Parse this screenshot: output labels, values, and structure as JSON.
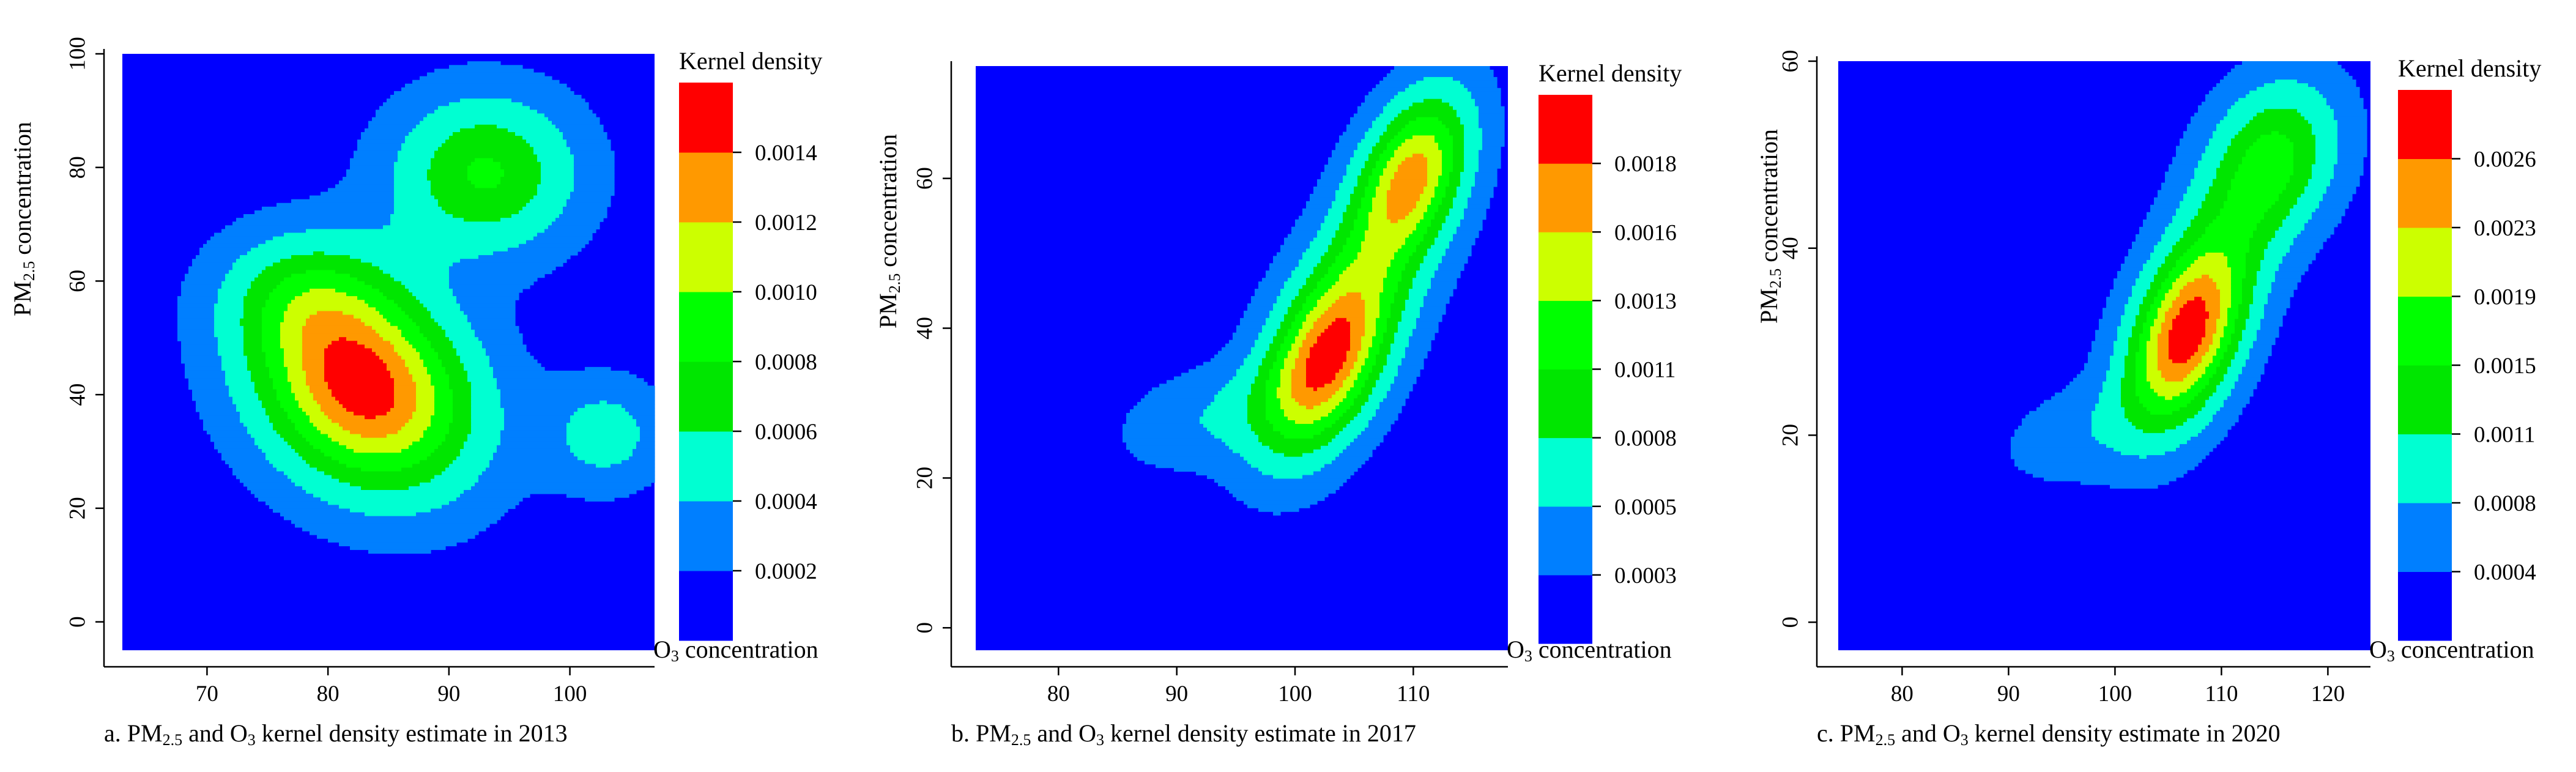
{
  "colors": {
    "levels": [
      "#0000ff",
      "#007fff",
      "#00ffd2",
      "#00e600",
      "#00ff00",
      "#ccff00",
      "#ff9900",
      "#ff0000"
    ]
  },
  "chart_data": [
    {
      "type": "heatmap",
      "title": "",
      "caption": "a. PM2.5 and O3 kernel density estimate in 2013",
      "caption_parts": {
        "pre": "a. PM",
        "sub1": "2.5",
        "mid": " and O",
        "sub2": "3",
        "post": " kernel density estimate in 2013"
      },
      "xlabel": {
        "pre": "O",
        "sub": "3",
        "post": " concentration"
      },
      "ylabel": {
        "pre": "PM",
        "sub": "2.5",
        "post": " concentration"
      },
      "xlim": [
        63,
        107
      ],
      "ylim": [
        -5,
        100
      ],
      "xticks": [
        70,
        80,
        90,
        100
      ],
      "yticks": [
        0,
        20,
        40,
        60,
        80,
        100
      ],
      "legend_title": "Kernel density",
      "legend_labels": [
        "0.0002",
        "0.0004",
        "0.0006",
        "0.0008",
        "0.0010",
        "0.0012",
        "0.0014"
      ],
      "peaks": [
        {
          "x": 83,
          "y": 41,
          "sx": 6.5,
          "sy": 13,
          "rho": -0.2,
          "amp": 1.0
        },
        {
          "x": 93,
          "y": 79,
          "sx": 5.5,
          "sy": 10,
          "rho": 0.0,
          "amp": 0.55
        },
        {
          "x": 103,
          "y": 33,
          "sx": 3.5,
          "sy": 7,
          "rho": 0.0,
          "amp": 0.3
        },
        {
          "x": 78,
          "y": 58,
          "sx": 5,
          "sy": 8,
          "rho": 0.0,
          "amp": 0.3
        }
      ]
    },
    {
      "type": "heatmap",
      "title": "",
      "caption": "b. PM2.5 and O3 kernel density estimate in 2017",
      "caption_parts": {
        "pre": "b. PM",
        "sub1": "2.5",
        "mid": " and O",
        "sub2": "3",
        "post": " kernel density estimate in 2017"
      },
      "xlabel": {
        "pre": "O",
        "sub": "3",
        "post": " concentration"
      },
      "ylabel": {
        "pre": "PM",
        "sub": "2.5",
        "post": " concentration"
      },
      "xlim": [
        73,
        118
      ],
      "ylim": [
        -3,
        75
      ],
      "xticks": [
        80,
        90,
        100,
        110
      ],
      "yticks": [
        0,
        20,
        40,
        60
      ],
      "legend_title": "Kernel density",
      "legend_labels": [
        "0.0003",
        "0.0005",
        "0.0008",
        "0.0011",
        "0.0013",
        "0.0016",
        "0.0018"
      ],
      "peaks": [
        {
          "x": 102.5,
          "y": 35,
          "sx": 4,
          "sy": 9,
          "rho": 0.45,
          "amp": 1.0
        },
        {
          "x": 110,
          "y": 61,
          "sx": 3.5,
          "sy": 8,
          "rho": 0.4,
          "amp": 0.85
        },
        {
          "x": 92,
          "y": 28,
          "sx": 5,
          "sy": 5,
          "rho": 0.3,
          "amp": 0.22
        },
        {
          "x": 106,
          "y": 48,
          "sx": 5,
          "sy": 10,
          "rho": 0.5,
          "amp": 0.3
        }
      ]
    },
    {
      "type": "heatmap",
      "title": "",
      "caption": "c. PM2.5 and O3 kernel density estimate in 2020",
      "caption_parts": {
        "pre": "c. PM",
        "sub1": "2.5",
        "mid": " and O",
        "sub2": "3",
        "post": " kernel density estimate in 2020"
      },
      "xlabel": {
        "pre": "O",
        "sub": "3",
        "post": " concentration"
      },
      "ylabel": {
        "pre": "PM",
        "sub": "2.5",
        "post": " concentration"
      },
      "xlim": [
        74,
        124
      ],
      "ylim": [
        -3,
        60
      ],
      "xticks": [
        80,
        90,
        100,
        110,
        120
      ],
      "yticks": [
        0,
        20,
        40,
        60
      ],
      "legend_title": "Kernel density",
      "legend_labels": [
        "0.0004",
        "0.0008",
        "0.0011",
        "0.0015",
        "0.0019",
        "0.0023",
        "0.0026"
      ],
      "peaks": [
        {
          "x": 106.5,
          "y": 30,
          "sx": 4,
          "sy": 7,
          "rho": 0.4,
          "amp": 1.0
        },
        {
          "x": 115,
          "y": 50,
          "sx": 4.5,
          "sy": 6,
          "rho": 0.2,
          "amp": 0.55
        },
        {
          "x": 96,
          "y": 20,
          "sx": 5,
          "sy": 4,
          "rho": 0.3,
          "amp": 0.18
        },
        {
          "x": 110,
          "y": 40,
          "sx": 5,
          "sy": 8,
          "rho": 0.5,
          "amp": 0.3
        }
      ]
    }
  ]
}
